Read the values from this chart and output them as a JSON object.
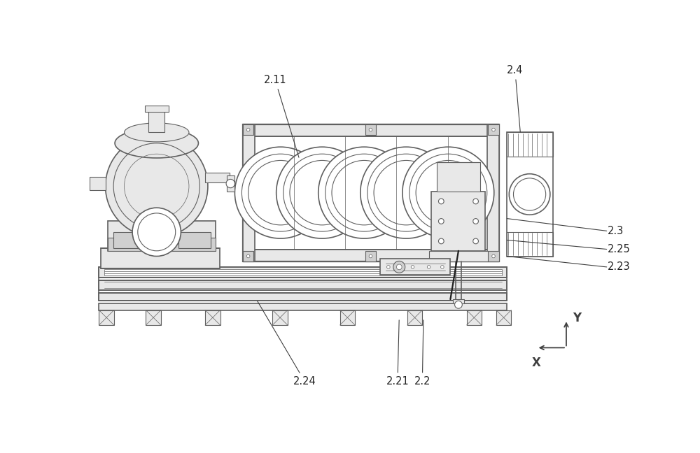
{
  "bg_color": "#ffffff",
  "lc": "#606060",
  "dc": "#404040",
  "fc_light": "#e8e8e8",
  "fc_med": "#d0d0d0",
  "fc_dark": "#b8b8b8",
  "fig_width": 10.0,
  "fig_height": 6.48,
  "label_fontsize": 10.5,
  "label_color": "#222222"
}
